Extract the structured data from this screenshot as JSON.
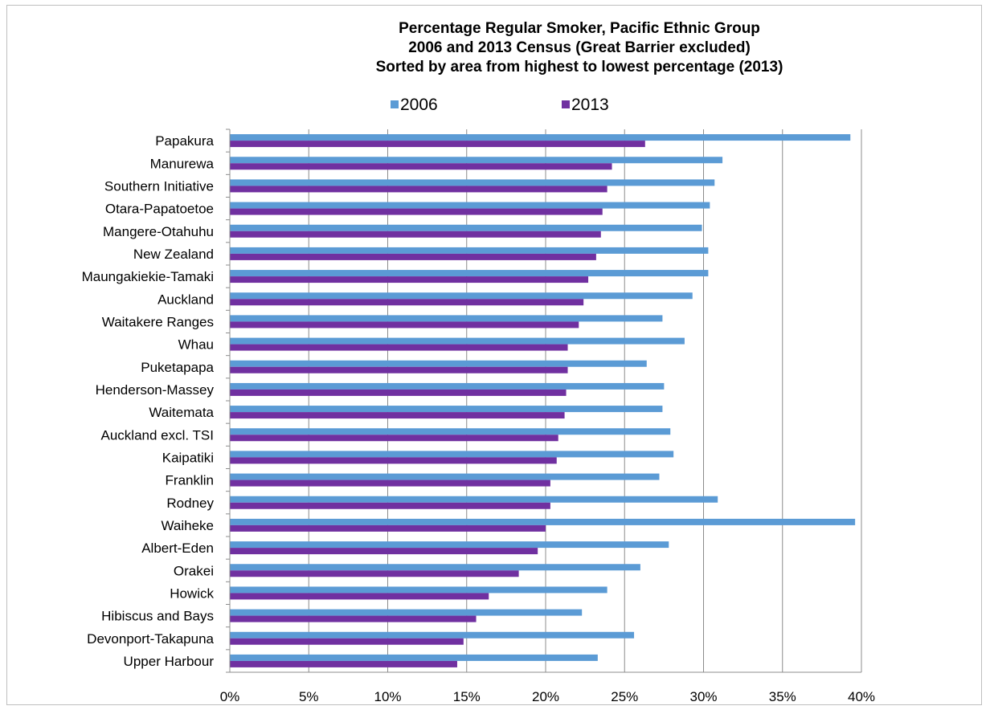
{
  "chart_data": {
    "type": "bar",
    "orientation": "horizontal",
    "title_lines": [
      "Percentage Regular Smoker, Pacific Ethnic Group",
      "2006 and 2013 Census (Great Barrier excluded)",
      "Sorted by area from highest to lowest percentage (2013)"
    ],
    "xlabel": "",
    "ylabel": "",
    "xlim": [
      0,
      40
    ],
    "ticks": [
      "0%",
      "5%",
      "10%",
      "15%",
      "20%",
      "25%",
      "30%",
      "35%",
      "40%"
    ],
    "tick_values": [
      0,
      5,
      10,
      15,
      20,
      25,
      30,
      35,
      40
    ],
    "grid": "vertical",
    "legend_position": "top",
    "categories": [
      "Papakura",
      "Manurewa",
      "Southern Initiative",
      "Otara-Papatoetoe",
      "Mangere-Otahuhu",
      "New Zealand",
      "Maungakiekie-Tamaki",
      "Auckland",
      "Waitakere Ranges",
      "Whau",
      "Puketapapa",
      "Henderson-Massey",
      "Waitemata",
      "Auckland excl. TSI",
      "Kaipatiki",
      "Franklin",
      "Rodney",
      "Waiheke",
      "Albert-Eden",
      "Orakei",
      "Howick",
      "Hibiscus and Bays",
      "Devonport-Takapuna",
      "Upper Harbour"
    ],
    "series": [
      {
        "name": "2006",
        "color": "#5b9bd5",
        "values": [
          39.3,
          31.2,
          30.7,
          30.4,
          29.9,
          30.3,
          30.3,
          29.3,
          27.4,
          28.8,
          26.4,
          27.5,
          27.4,
          27.9,
          28.1,
          27.2,
          30.9,
          39.6,
          27.8,
          26.0,
          23.9,
          22.3,
          25.6,
          23.3
        ]
      },
      {
        "name": "2013",
        "color": "#7030a0",
        "values": [
          26.3,
          24.2,
          23.9,
          23.6,
          23.5,
          23.2,
          22.7,
          22.4,
          22.1,
          21.4,
          21.4,
          21.3,
          21.2,
          20.8,
          20.7,
          20.3,
          20.3,
          20.0,
          19.5,
          18.3,
          16.4,
          15.6,
          14.8,
          14.4
        ]
      }
    ]
  }
}
